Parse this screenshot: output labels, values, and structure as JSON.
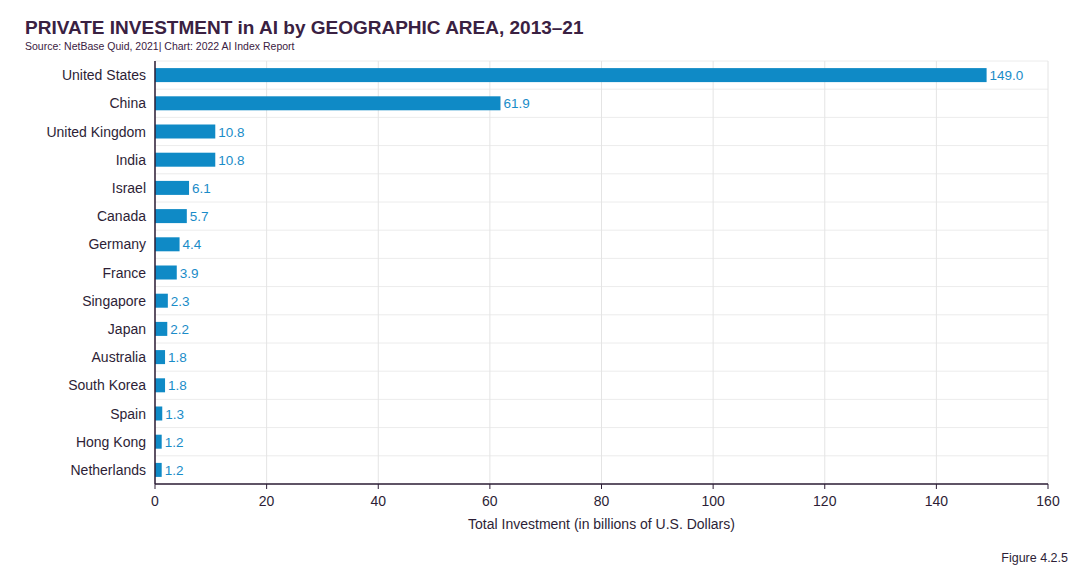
{
  "chart_data": {
    "type": "bar",
    "orientation": "horizontal",
    "title": "PRIVATE INVESTMENT in AI by GEOGRAPHIC AREA, 2013–21",
    "subtitle": "Source: NetBase Quid, 2021| Chart: 2022 AI Index Report",
    "x_label": "Total Investment (in billions of U.S. Dollars)",
    "annotations": [
      "Figure 4.2.5"
    ],
    "categories": [
      "United States",
      "China",
      "United Kingdom",
      "India",
      "Israel",
      "Canada",
      "Germany",
      "France",
      "Singapore",
      "Japan",
      "Australia",
      "South Korea",
      "Spain",
      "Hong Kong",
      "Netherlands"
    ],
    "values": [
      149.0,
      61.9,
      10.8,
      10.8,
      6.1,
      5.7,
      4.4,
      3.9,
      2.3,
      2.2,
      1.8,
      1.8,
      1.3,
      1.2,
      1.2
    ],
    "value_labels": [
      "149.0",
      "61.9",
      "10.8",
      "10.8",
      "6.1",
      "5.7",
      "4.4",
      "3.9",
      "2.3",
      "2.2",
      "1.8",
      "1.8",
      "1.3",
      "1.2",
      "1.2"
    ],
    "color": "#0f8ac6",
    "data_labels": true,
    "xlim": [
      0,
      160
    ],
    "xticks": [
      0,
      20,
      40,
      60,
      80,
      100,
      120,
      140,
      160
    ],
    "grid": true
  }
}
